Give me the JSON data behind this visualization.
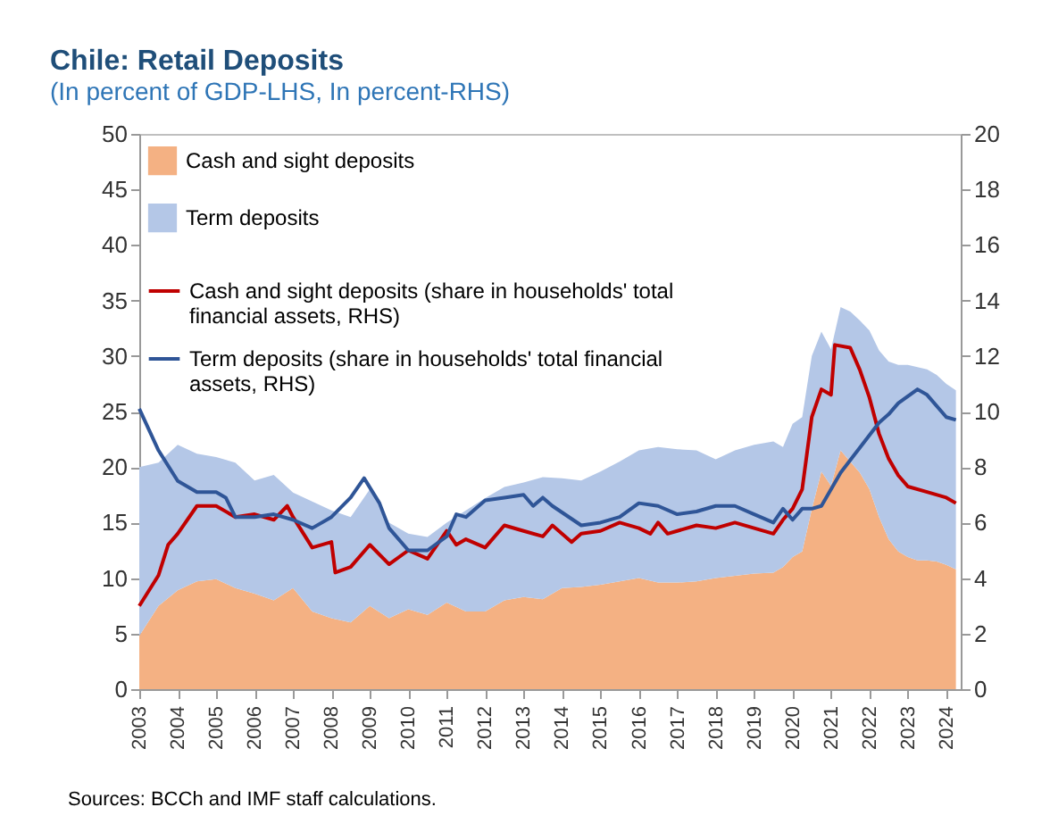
{
  "chart_data": {
    "type": "area",
    "title": "Chile: Retail Deposits",
    "subtitle": "(In percent of GDP-LHS, In percent-RHS)",
    "stacked": true,
    "legend": "top left",
    "x": [
      2003.0,
      2003.5,
      2004.0,
      2004.5,
      2005.0,
      2005.5,
      2006.0,
      2006.5,
      2007.0,
      2007.5,
      2008.0,
      2008.5,
      2009.0,
      2009.5,
      2010.0,
      2010.5,
      2011.0,
      2011.5,
      2012.0,
      2012.5,
      2013.0,
      2013.5,
      2014.0,
      2014.5,
      2015.0,
      2015.5,
      2016.0,
      2016.5,
      2017.0,
      2017.5,
      2018.0,
      2018.5,
      2019.0,
      2019.5,
      2019.75,
      2020.0,
      2020.25,
      2020.5,
      2020.75,
      2021.0,
      2021.25,
      2021.5,
      2021.75,
      2022.0,
      2022.25,
      2022.5,
      2022.75,
      2023.0,
      2023.25,
      2023.5,
      2023.75,
      2024.0,
      2024.25
    ],
    "series": [
      {
        "name": "Cash and sight deposits",
        "color": "#f4b183",
        "values": [
          4.8,
          7.5,
          8.9,
          9.7,
          9.9,
          9.1,
          8.6,
          8.0,
          9.1,
          7.0,
          6.4,
          6.0,
          7.5,
          6.4,
          7.2,
          6.7,
          7.8,
          7.0,
          7.0,
          8.0,
          8.3,
          8.1,
          9.1,
          9.2,
          9.4,
          9.7,
          10.0,
          9.6,
          9.6,
          9.7,
          10.0,
          10.2,
          10.4,
          10.5,
          11.0,
          11.9,
          12.4,
          16.2,
          19.6,
          18.3,
          21.5,
          20.5,
          19.5,
          18.0,
          15.5,
          13.5,
          12.4,
          11.9,
          11.6,
          11.6,
          11.5,
          11.2,
          10.8
        ]
      },
      {
        "name": "Term deposits",
        "color": "#b4c7e7",
        "values": [
          15.2,
          12.9,
          13.1,
          11.5,
          11.0,
          11.3,
          10.2,
          11.3,
          8.6,
          9.9,
          9.7,
          9.5,
          10.5,
          8.6,
          6.8,
          7.0,
          7.2,
          9.1,
          10.2,
          10.2,
          10.3,
          11.0,
          9.9,
          9.6,
          10.2,
          10.8,
          11.5,
          12.2,
          12.0,
          11.8,
          10.7,
          11.3,
          11.6,
          11.8,
          10.8,
          12.0,
          12.1,
          13.8,
          12.6,
          12.3,
          12.9,
          13.5,
          13.7,
          14.3,
          15.0,
          16.0,
          16.8,
          17.3,
          17.4,
          17.2,
          16.8,
          16.3,
          16.1
        ]
      },
      {
        "name": "Cash and sight deposits (share in households' total financial assets, RHS)",
        "type": "line",
        "axis": "y2",
        "color": "#c00000",
        "x": [
          2003.0,
          2003.5,
          2003.75,
          2004.0,
          2004.5,
          2005.0,
          2005.5,
          2006.0,
          2006.5,
          2006.85,
          2007.0,
          2007.5,
          2008.0,
          2008.1,
          2008.5,
          2009.0,
          2009.5,
          2010.0,
          2010.5,
          2011.0,
          2011.25,
          2011.5,
          2012.0,
          2012.5,
          2013.0,
          2013.5,
          2013.75,
          2014.25,
          2014.5,
          2015.0,
          2015.5,
          2016.0,
          2016.3,
          2016.5,
          2016.75,
          2017.0,
          2017.5,
          2018.0,
          2018.5,
          2019.0,
          2019.5,
          2019.75,
          2020.0,
          2020.25,
          2020.5,
          2020.75,
          2021.0,
          2021.1,
          2021.5,
          2021.75,
          2022.0,
          2022.25,
          2022.5,
          2022.75,
          2023.0,
          2023.5,
          2024.0,
          2024.25
        ],
        "values": [
          3.0,
          4.1,
          5.2,
          5.6,
          6.6,
          6.6,
          6.2,
          6.3,
          6.1,
          6.6,
          6.2,
          5.1,
          5.3,
          4.2,
          4.4,
          5.2,
          4.5,
          5.0,
          4.7,
          5.7,
          5.2,
          5.4,
          5.1,
          5.9,
          5.7,
          5.5,
          5.9,
          5.3,
          5.6,
          5.7,
          6.0,
          5.8,
          5.6,
          6.0,
          5.6,
          5.7,
          5.9,
          5.8,
          6.0,
          5.8,
          5.6,
          6.1,
          6.5,
          7.2,
          9.8,
          10.8,
          10.6,
          12.4,
          12.3,
          11.5,
          10.5,
          9.2,
          8.3,
          7.7,
          7.3,
          7.1,
          6.9,
          6.7
        ]
      },
      {
        "name": "Term deposits (share in households' total financial assets, RHS)",
        "type": "line",
        "axis": "y2",
        "color": "#2f5597",
        "x": [
          2003.0,
          2003.5,
          2004.0,
          2004.5,
          2005.0,
          2005.25,
          2005.5,
          2006.0,
          2006.5,
          2007.0,
          2007.5,
          2008.0,
          2008.5,
          2008.85,
          2009.25,
          2009.5,
          2010.0,
          2010.5,
          2011.0,
          2011.25,
          2011.5,
          2012.0,
          2012.5,
          2013.0,
          2013.25,
          2013.5,
          2013.75,
          2014.5,
          2015.0,
          2015.5,
          2016.0,
          2016.5,
          2017.0,
          2017.5,
          2018.0,
          2018.5,
          2019.0,
          2019.5,
          2019.75,
          2020.0,
          2020.25,
          2020.5,
          2020.75,
          2021.25,
          2021.75,
          2022.25,
          2022.5,
          2022.75,
          2023.25,
          2023.5,
          2024.0,
          2024.25
        ],
        "values": [
          10.1,
          8.6,
          7.5,
          7.1,
          7.1,
          6.9,
          6.2,
          6.2,
          6.3,
          6.1,
          5.8,
          6.2,
          6.9,
          7.6,
          6.7,
          5.8,
          5.0,
          5.0,
          5.5,
          6.3,
          6.2,
          6.8,
          6.9,
          7.0,
          6.6,
          6.9,
          6.6,
          5.9,
          6.0,
          6.2,
          6.7,
          6.6,
          6.3,
          6.4,
          6.6,
          6.6,
          6.3,
          6.0,
          6.5,
          6.1,
          6.5,
          6.5,
          6.6,
          7.8,
          8.7,
          9.6,
          9.9,
          10.3,
          10.8,
          10.6,
          9.8,
          9.7
        ]
      }
    ],
    "xlim": [
      2003,
      2024.375
    ],
    "xticks": [
      2003,
      2004,
      2005,
      2006,
      2007,
      2008,
      2009,
      2010,
      2011,
      2012,
      2013,
      2014,
      2015,
      2016,
      2017,
      2018,
      2019,
      2020,
      2021,
      2022,
      2023,
      2024
    ],
    "ylim": [
      0,
      50
    ],
    "yticks": [
      0,
      5,
      10,
      15,
      20,
      25,
      30,
      35,
      40,
      45,
      50
    ],
    "y2lim": [
      0,
      20
    ],
    "y2ticks": [
      0,
      2,
      4,
      6,
      8,
      10,
      12,
      14,
      16,
      18,
      20
    ],
    "annotations": [
      "Sources: BCCh and IMF staff calculations."
    ]
  }
}
